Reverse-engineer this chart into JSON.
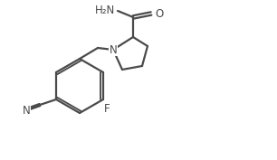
{
  "background_color": "#ffffff",
  "line_color": "#4a4a4a",
  "text_color": "#4a4a4a",
  "line_width": 1.6,
  "font_size": 8.5,
  "figsize": [
    3.06,
    1.77
  ],
  "dpi": 100,
  "xlim": [
    0,
    3.06
  ],
  "ylim": [
    0,
    1.77
  ]
}
